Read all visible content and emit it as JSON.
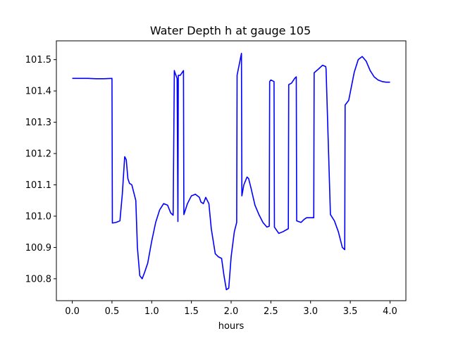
{
  "chart_data": {
    "type": "line",
    "title": "Water Depth h at gauge 105",
    "xlabel": "hours",
    "ylabel": "",
    "xlim": [
      -0.2,
      4.2
    ],
    "ylim": [
      100.73,
      101.56
    ],
    "xticks": [
      0.0,
      0.5,
      1.0,
      1.5,
      2.0,
      2.5,
      3.0,
      3.5,
      4.0
    ],
    "xtick_labels": [
      "0.0",
      "0.5",
      "1.0",
      "1.5",
      "2.0",
      "2.5",
      "3.0",
      "3.5",
      "4.0"
    ],
    "yticks": [
      100.8,
      100.9,
      101.0,
      101.1,
      101.2,
      101.3,
      101.4,
      101.5
    ],
    "ytick_labels": [
      "100.8",
      "100.9",
      "101.0",
      "101.1",
      "101.2",
      "101.3",
      "101.4",
      "101.5"
    ],
    "grid": false,
    "series": [
      {
        "color": "#0000ff",
        "x": [
          0.0,
          0.1,
          0.2,
          0.3,
          0.4,
          0.5,
          0.505,
          0.55,
          0.6,
          0.63,
          0.66,
          0.68,
          0.7,
          0.72,
          0.75,
          0.8,
          0.82,
          0.85,
          0.88,
          0.91,
          0.95,
          1.0,
          1.05,
          1.1,
          1.15,
          1.2,
          1.24,
          1.27,
          1.285,
          1.29,
          1.32,
          1.33,
          1.335,
          1.36,
          1.4,
          1.405,
          1.45,
          1.5,
          1.55,
          1.6,
          1.62,
          1.65,
          1.68,
          1.72,
          1.75,
          1.8,
          1.84,
          1.88,
          1.91,
          1.94,
          1.97,
          2.0,
          2.04,
          2.07,
          2.075,
          2.13,
          2.135,
          2.16,
          2.2,
          2.22,
          2.25,
          2.3,
          2.35,
          2.4,
          2.45,
          2.48,
          2.485,
          2.5,
          2.54,
          2.545,
          2.6,
          2.65,
          2.72,
          2.725,
          2.76,
          2.8,
          2.82,
          2.825,
          2.88,
          2.92,
          2.95,
          3.04,
          3.045,
          3.1,
          3.15,
          3.19,
          3.195,
          3.25,
          3.3,
          3.35,
          3.4,
          3.43,
          3.435,
          3.48,
          3.55,
          3.6,
          3.65,
          3.7,
          3.75,
          3.8,
          3.85,
          3.9,
          3.95,
          4.0
        ],
        "y": [
          101.44,
          101.44,
          101.44,
          101.439,
          101.439,
          101.44,
          100.978,
          100.98,
          100.985,
          101.07,
          101.19,
          101.18,
          101.12,
          101.105,
          101.1,
          101.05,
          100.9,
          100.81,
          100.8,
          100.82,
          100.85,
          100.92,
          100.98,
          101.02,
          101.04,
          101.035,
          101.01,
          101.003,
          101.465,
          101.46,
          101.44,
          100.983,
          101.45,
          101.45,
          101.465,
          101.005,
          101.04,
          101.065,
          101.07,
          101.06,
          101.045,
          101.04,
          101.06,
          101.04,
          100.96,
          100.88,
          100.87,
          100.865,
          100.81,
          100.765,
          100.77,
          100.87,
          100.95,
          100.98,
          101.45,
          101.52,
          101.065,
          101.1,
          101.125,
          101.12,
          101.09,
          101.035,
          101.005,
          100.98,
          100.965,
          100.968,
          101.43,
          101.435,
          101.43,
          100.965,
          100.945,
          100.95,
          100.96,
          101.42,
          101.425,
          101.44,
          101.445,
          100.985,
          100.98,
          100.99,
          100.995,
          100.995,
          101.458,
          101.47,
          101.482,
          101.478,
          101.47,
          101.005,
          100.985,
          100.95,
          100.9,
          100.893,
          101.355,
          101.37,
          101.46,
          101.5,
          101.51,
          101.495,
          101.465,
          101.445,
          101.435,
          101.43,
          101.428,
          101.428
        ]
      }
    ]
  }
}
